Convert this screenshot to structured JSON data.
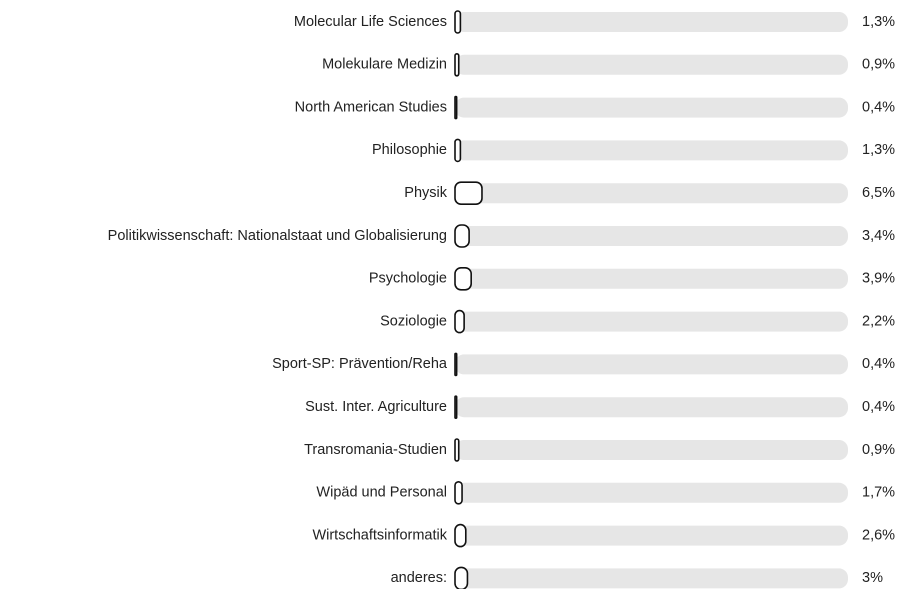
{
  "chart_data": {
    "type": "bar",
    "orientation": "horizontal",
    "categories": [
      "Molecular Life Sciences",
      "Molekulare Medizin",
      "North American Studies",
      "Philosophie",
      "Physik",
      "Politikwissenschaft: Nationalstaat und Globalisierung",
      "Psychologie",
      "Soziologie",
      "Sport-SP: Prävention/Reha",
      "Sust. Inter. Agriculture",
      "Transromania-Studien",
      "Wipäd und Personal",
      "Wirtschaftsinformatik",
      "anderes:"
    ],
    "values": [
      1.3,
      0.9,
      0.4,
      1.3,
      6.5,
      3.4,
      3.9,
      2.2,
      0.4,
      0.4,
      0.9,
      1.7,
      2.6,
      3
    ],
    "value_labels": [
      "1,3%",
      "0,9%",
      "0,4%",
      "1,3%",
      "6,5%",
      "3,4%",
      "3,9%",
      "2,2%",
      "0,4%",
      "0,4%",
      "0,9%",
      "1,7%",
      "2,6%",
      "3%"
    ],
    "xlim": [
      0,
      100
    ],
    "color": "#ffffff",
    "track_color": "#e6e6e6"
  }
}
